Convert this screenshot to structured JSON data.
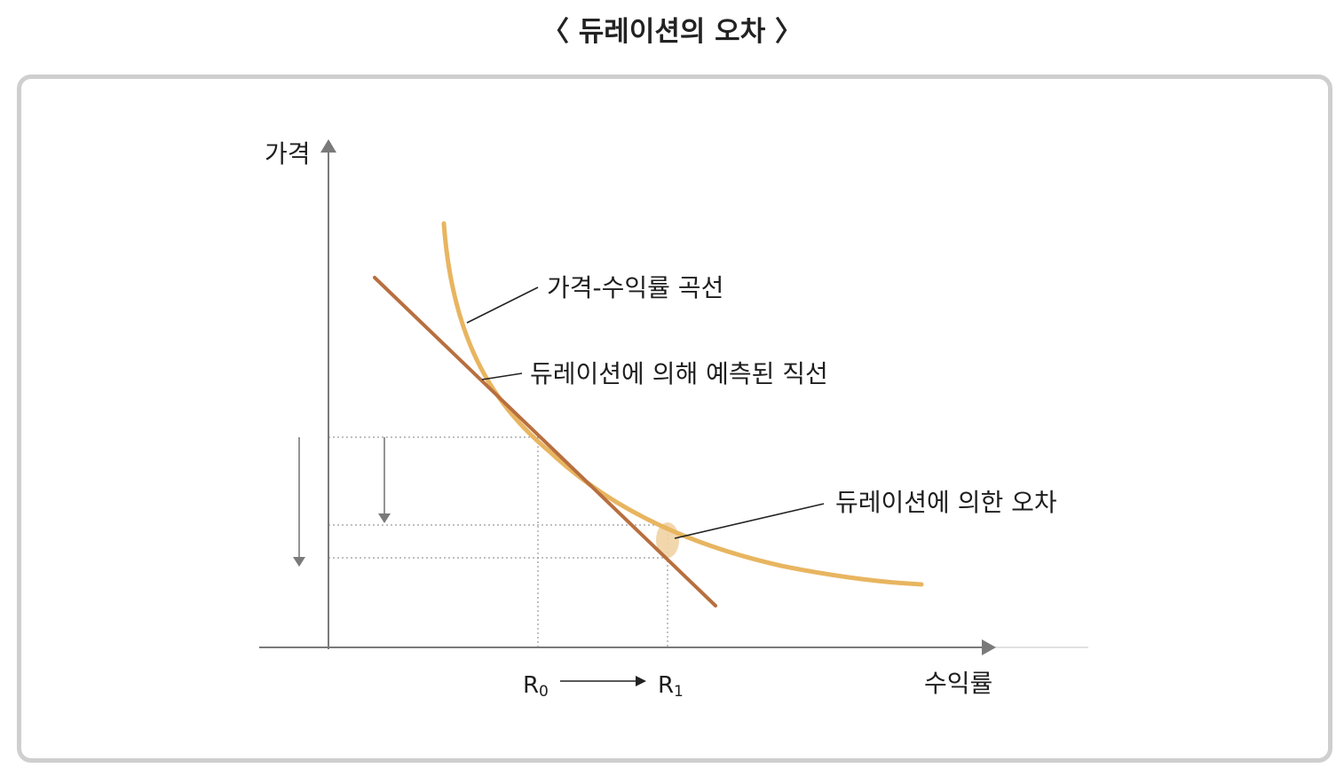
{
  "title": "〈 듀레이션의 오차 〉",
  "axes": {
    "y_label": "가격",
    "x_label": "수익률"
  },
  "annotations": {
    "curve_label": "가격-수익률 곡선",
    "tangent_label": "듀레이션에 의해 예측된 직선",
    "error_label": "듀레이션에 의한 오차"
  },
  "x_ticks": {
    "r0_main": "R",
    "r0_sub": "0",
    "r1_main": "R",
    "r1_sub": "1"
  },
  "colors": {
    "curve": "#e8b560",
    "tangent": "#b86f3f",
    "error_highlight": "#f1d3a3",
    "axis": "#7a7a7a",
    "guide": "#9a9a9a",
    "frame_border": "#cfcfcf"
  }
}
